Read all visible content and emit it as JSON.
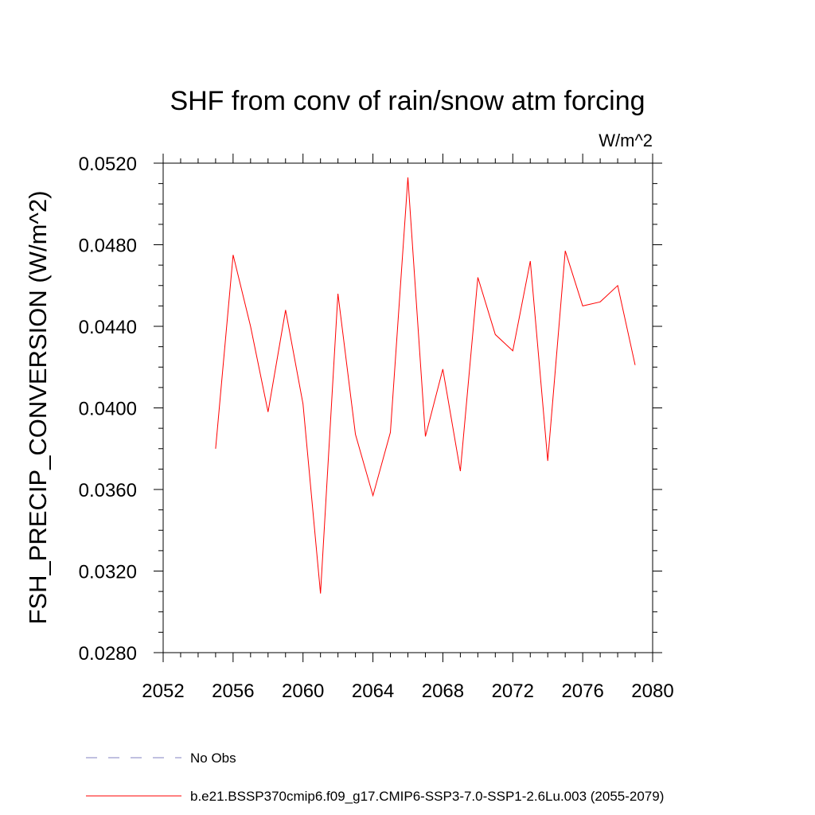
{
  "chart_data": {
    "type": "line",
    "title": "SHF from conv of rain/snow atm forcing",
    "units_label": "W/m^2",
    "ylabel": "FSH_PRECIP_CONVERSION  (W/m^2)",
    "xlabel": "",
    "xlim": [
      2052,
      2080
    ],
    "ylim": [
      0.028,
      0.052
    ],
    "x_ticks": [
      "2052",
      "2056",
      "2060",
      "2064",
      "2068",
      "2072",
      "2076",
      "2080"
    ],
    "y_ticks": [
      "0.0280",
      "0.0320",
      "0.0360",
      "0.0400",
      "0.0440",
      "0.0480",
      "0.0520"
    ],
    "grid": false,
    "legend_placement": "bottom",
    "series": [
      {
        "name": "b.e21.BSSP370cmip6.f09_g17.CMIP6-SSP3-7.0-SSP1-2.6Lu.003 (2055-2079)",
        "color": "#ff0000",
        "style": "solid",
        "x": [
          2055,
          2056,
          2057,
          2058,
          2059,
          2060,
          2061,
          2062,
          2063,
          2064,
          2065,
          2066,
          2067,
          2068,
          2069,
          2070,
          2071,
          2072,
          2073,
          2074,
          2075,
          2076,
          2077,
          2078,
          2079
        ],
        "y": [
          0.038,
          0.0475,
          0.044,
          0.0398,
          0.0448,
          0.0402,
          0.0309,
          0.0456,
          0.0387,
          0.0357,
          0.0388,
          0.0513,
          0.0386,
          0.0419,
          0.0369,
          0.0464,
          0.0436,
          0.0428,
          0.0472,
          0.0374,
          0.0477,
          0.045,
          0.0452,
          0.046,
          0.0421
        ]
      }
    ],
    "legend": [
      {
        "label": "No Obs",
        "color": "#8080c0",
        "style": "dashed"
      },
      {
        "label": "b.e21.BSSP370cmip6.f09_g17.CMIP6-SSP3-7.0-SSP1-2.6Lu.003 (2055-2079)",
        "color": "#ff0000",
        "style": "solid"
      }
    ]
  }
}
